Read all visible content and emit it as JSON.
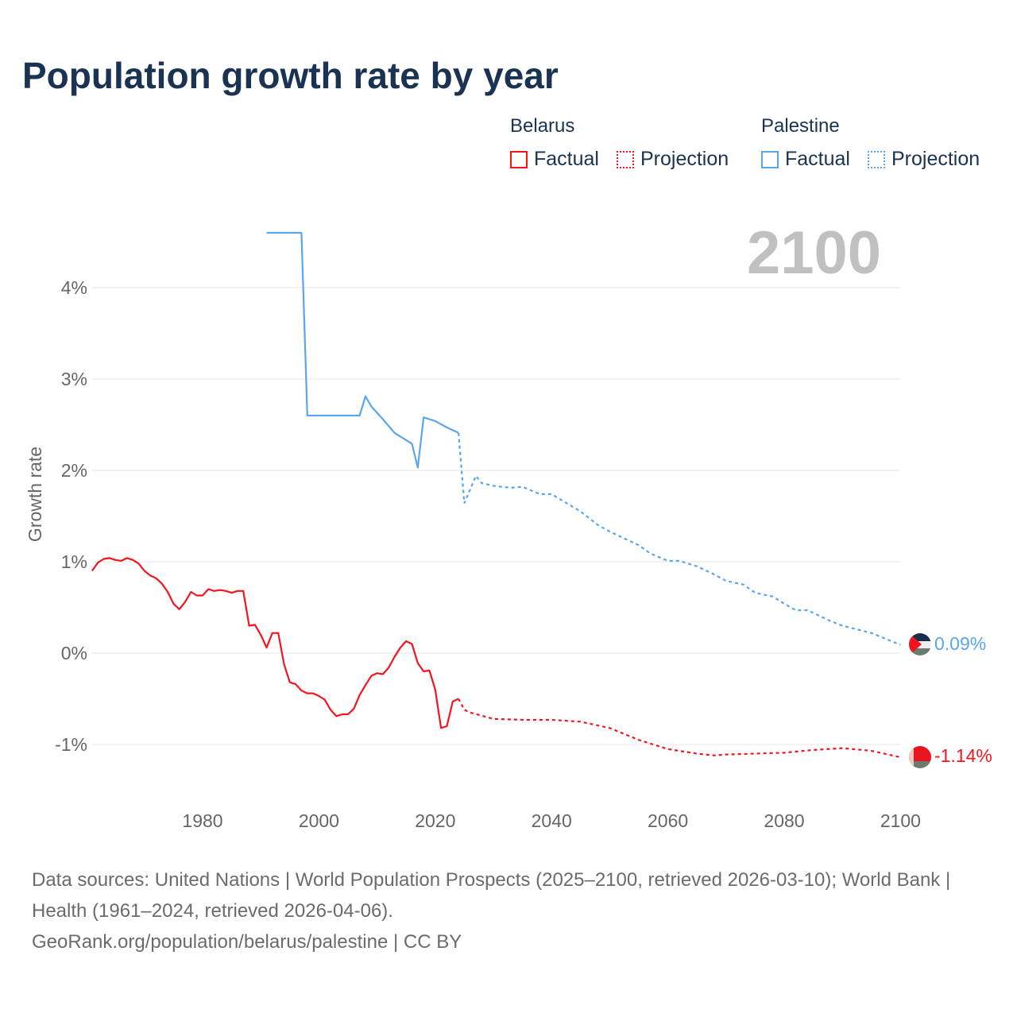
{
  "title": "Population growth rate by year",
  "legend": {
    "groups": [
      {
        "name": "Belarus",
        "factual": "Factual",
        "projection": "Projection",
        "color": "#f5141e"
      },
      {
        "name": "Palestine",
        "factual": "Factual",
        "projection": "Projection",
        "color": "#5aa5eb"
      }
    ]
  },
  "year_display": "2100",
  "chart_data": {
    "type": "line",
    "title": "Population growth rate by year",
    "xlabel": "",
    "ylabel": "Growth rate",
    "xlim": [
      1961,
      2100
    ],
    "ylim": [
      -1.5,
      4.8
    ],
    "x_ticks": [
      1980,
      2000,
      2020,
      2040,
      2060,
      2080,
      2100
    ],
    "y_ticks": [
      {
        "v": 4,
        "label": "4%"
      },
      {
        "v": 3,
        "label": "3%"
      },
      {
        "v": 2,
        "label": "2%"
      },
      {
        "v": 1,
        "label": "1%"
      },
      {
        "v": 0,
        "label": "0%"
      },
      {
        "v": -1,
        "label": "-1%"
      }
    ],
    "grid": true,
    "series": [
      {
        "name": "Belarus",
        "color": "#f5141e",
        "end_label": "-1.14%",
        "factual": [
          [
            1961,
            0.9
          ],
          [
            1962,
            0.99
          ],
          [
            1963,
            1.03
          ],
          [
            1964,
            1.04
          ],
          [
            1965,
            1.02
          ],
          [
            1966,
            1.01
          ],
          [
            1967,
            1.04
          ],
          [
            1968,
            1.02
          ],
          [
            1969,
            0.98
          ],
          [
            1970,
            0.9
          ],
          [
            1971,
            0.85
          ],
          [
            1972,
            0.82
          ],
          [
            1973,
            0.76
          ],
          [
            1974,
            0.67
          ],
          [
            1975,
            0.54
          ],
          [
            1976,
            0.48
          ],
          [
            1977,
            0.56
          ],
          [
            1978,
            0.67
          ],
          [
            1979,
            0.63
          ],
          [
            1980,
            0.63
          ],
          [
            1981,
            0.7
          ],
          [
            1982,
            0.68
          ],
          [
            1983,
            0.69
          ],
          [
            1984,
            0.68
          ],
          [
            1985,
            0.66
          ],
          [
            1986,
            0.68
          ],
          [
            1987,
            0.68
          ],
          [
            1988,
            0.3
          ],
          [
            1989,
            0.31
          ],
          [
            1990,
            0.2
          ],
          [
            1991,
            0.06
          ],
          [
            1992,
            0.22
          ],
          [
            1993,
            0.22
          ],
          [
            1994,
            -0.12
          ],
          [
            1995,
            -0.32
          ],
          [
            1996,
            -0.34
          ],
          [
            1997,
            -0.41
          ],
          [
            1998,
            -0.44
          ],
          [
            1999,
            -0.44
          ],
          [
            2000,
            -0.47
          ],
          [
            2001,
            -0.51
          ],
          [
            2002,
            -0.62
          ],
          [
            2003,
            -0.69
          ],
          [
            2004,
            -0.67
          ],
          [
            2005,
            -0.67
          ],
          [
            2006,
            -0.61
          ],
          [
            2007,
            -0.46
          ],
          [
            2008,
            -0.35
          ],
          [
            2009,
            -0.25
          ],
          [
            2010,
            -0.22
          ],
          [
            2011,
            -0.23
          ],
          [
            2012,
            -0.16
          ],
          [
            2013,
            -0.04
          ],
          [
            2014,
            0.06
          ],
          [
            2015,
            0.13
          ],
          [
            2016,
            0.1
          ],
          [
            2017,
            -0.11
          ],
          [
            2018,
            -0.2
          ],
          [
            2019,
            -0.19
          ],
          [
            2020,
            -0.4
          ],
          [
            2021,
            -0.82
          ],
          [
            2022,
            -0.8
          ],
          [
            2023,
            -0.53
          ],
          [
            2024,
            -0.5
          ]
        ],
        "projection": [
          [
            2024,
            -0.5
          ],
          [
            2025,
            -0.62
          ],
          [
            2026,
            -0.65
          ],
          [
            2030,
            -0.72
          ],
          [
            2035,
            -0.73
          ],
          [
            2040,
            -0.73
          ],
          [
            2045,
            -0.75
          ],
          [
            2050,
            -0.82
          ],
          [
            2055,
            -0.95
          ],
          [
            2060,
            -1.05
          ],
          [
            2065,
            -1.1
          ],
          [
            2068,
            -1.12
          ],
          [
            2070,
            -1.11
          ],
          [
            2075,
            -1.1
          ],
          [
            2080,
            -1.09
          ],
          [
            2085,
            -1.06
          ],
          [
            2090,
            -1.04
          ],
          [
            2095,
            -1.07
          ],
          [
            2100,
            -1.14
          ]
        ]
      },
      {
        "name": "Palestine",
        "color": "#5aa5eb",
        "end_label": "0.09%",
        "factual": [
          [
            1991,
            4.6
          ],
          [
            1997,
            4.6
          ],
          [
            1998,
            2.6
          ],
          [
            2007,
            2.6
          ],
          [
            2008,
            2.81
          ],
          [
            2009,
            2.7
          ],
          [
            2011,
            2.56
          ],
          [
            2013,
            2.41
          ],
          [
            2016,
            2.29
          ],
          [
            2017,
            2.03
          ],
          [
            2018,
            2.58
          ],
          [
            2020,
            2.54
          ],
          [
            2022,
            2.47
          ],
          [
            2024,
            2.41
          ]
        ],
        "projection": [
          [
            2024,
            2.41
          ],
          [
            2025,
            1.64
          ],
          [
            2027,
            1.94
          ],
          [
            2028,
            1.86
          ],
          [
            2030,
            1.83
          ],
          [
            2033,
            1.81
          ],
          [
            2035,
            1.82
          ],
          [
            2038,
            1.74
          ],
          [
            2040,
            1.74
          ],
          [
            2045,
            1.55
          ],
          [
            2048,
            1.4
          ],
          [
            2050,
            1.33
          ],
          [
            2055,
            1.18
          ],
          [
            2057,
            1.09
          ],
          [
            2060,
            1.01
          ],
          [
            2062,
            1.01
          ],
          [
            2065,
            0.95
          ],
          [
            2068,
            0.86
          ],
          [
            2070,
            0.79
          ],
          [
            2073,
            0.75
          ],
          [
            2075,
            0.66
          ],
          [
            2078,
            0.62
          ],
          [
            2080,
            0.54
          ],
          [
            2082,
            0.47
          ],
          [
            2084,
            0.47
          ],
          [
            2088,
            0.35
          ],
          [
            2090,
            0.3
          ],
          [
            2095,
            0.22
          ],
          [
            2100,
            0.09
          ]
        ]
      }
    ]
  },
  "footer": {
    "sources": "Data sources: United Nations | World Population Prospects (2025–2100, retrieved 2026-03-10); World Bank | Health (1961–2024, retrieved 2026-04-06).",
    "credit": "GeoRank.org/population/belarus/palestine | CC BY"
  }
}
